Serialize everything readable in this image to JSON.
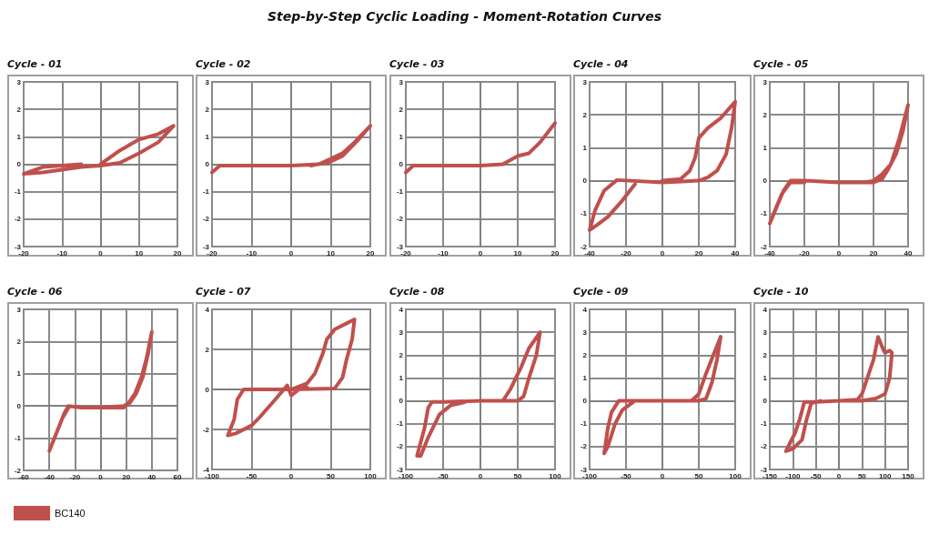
{
  "chart_data": [
    {
      "type": "line",
      "title": "Cycle - 01",
      "annotations": [
        "Step-by-Step Cyclic Loading - Moment-Rotation Curves"
      ],
      "marker": "none",
      "line_style": "solid",
      "grid": true,
      "xlim": [
        -20,
        20
      ],
      "xticks": [
        -20,
        -10,
        0,
        10,
        20
      ],
      "ylim": [
        -3,
        3
      ],
      "yticks": [
        -3,
        -2,
        -1,
        0,
        1,
        2,
        3
      ],
      "series": [
        {
          "color": "#c0504d",
          "x": [
            0,
            5,
            10,
            15,
            19,
            15,
            10,
            5,
            0,
            -5,
            -10,
            -15,
            -20,
            -15,
            -10,
            -5
          ],
          "values": [
            0,
            0.5,
            0.9,
            1.1,
            1.4,
            0.8,
            0.4,
            0.05,
            -0.05,
            -0.1,
            -0.2,
            -0.3,
            -0.35,
            -0.1,
            -0.05,
            0
          ]
        }
      ]
    },
    {
      "type": "line",
      "title": "Cycle - 02",
      "marker": "none",
      "line_style": "solid",
      "grid": true,
      "xlim": [
        -20,
        20
      ],
      "xticks": [
        -20,
        -10,
        0,
        10,
        20
      ],
      "ylim": [
        -3,
        3
      ],
      "yticks": [
        -3,
        -2,
        -1,
        0,
        1,
        2,
        3
      ],
      "series": [
        {
          "color": "#c0504d",
          "x": [
            -20,
            -18,
            -10,
            0,
            7,
            10,
            13,
            16,
            20,
            17,
            13,
            10,
            5
          ],
          "values": [
            -0.3,
            -0.05,
            -0.05,
            -0.05,
            0,
            0.2,
            0.4,
            0.8,
            1.4,
            0.9,
            0.3,
            0.1,
            -0.05
          ]
        }
      ]
    },
    {
      "type": "line",
      "title": "Cycle - 03",
      "marker": "none",
      "line_style": "solid",
      "grid": true,
      "xlim": [
        -20,
        20
      ],
      "xticks": [
        -20,
        -10,
        0,
        10,
        20
      ],
      "ylim": [
        -3,
        3
      ],
      "yticks": [
        -3,
        -2,
        -1,
        0,
        1,
        2,
        3
      ],
      "series": [
        {
          "color": "#c0504d",
          "x": [
            -20,
            -18,
            -10,
            0,
            6,
            10,
            13,
            16,
            20
          ],
          "values": [
            -0.3,
            -0.05,
            -0.05,
            -0.05,
            0,
            0.3,
            0.4,
            0.8,
            1.5
          ]
        }
      ]
    },
    {
      "type": "line",
      "title": "Cycle - 04",
      "marker": "none",
      "line_style": "solid",
      "grid": true,
      "xlim": [
        -40,
        40
      ],
      "xticks": [
        -40,
        -20,
        0,
        20,
        40
      ],
      "ylim": [
        -2,
        3
      ],
      "yticks": [
        -2,
        -1,
        0,
        1,
        2,
        3
      ],
      "series": [
        {
          "color": "#c0504d",
          "x": [
            0,
            10,
            15,
            18,
            20,
            25,
            32,
            40,
            38,
            35,
            30,
            25,
            20,
            0,
            -25,
            -32,
            -37,
            -40,
            -36,
            -30,
            -22,
            -15
          ],
          "values": [
            0,
            0.05,
            0.3,
            0.7,
            1.3,
            1.6,
            1.9,
            2.4,
            1.6,
            0.8,
            0.3,
            0.1,
            0,
            -0.05,
            0.02,
            -0.3,
            -0.9,
            -1.5,
            -1.35,
            -1.1,
            -0.6,
            -0.1
          ]
        }
      ]
    },
    {
      "type": "line",
      "title": "Cycle - 05",
      "marker": "none",
      "line_style": "solid",
      "grid": true,
      "xlim": [
        -40,
        40
      ],
      "xticks": [
        -40,
        -20,
        0,
        20,
        40
      ],
      "ylim": [
        -2,
        3
      ],
      "yticks": [
        -2,
        -1,
        0,
        1,
        2,
        3
      ],
      "series": [
        {
          "color": "#c0504d",
          "x": [
            0,
            15,
            20,
            25,
            30,
            35,
            40,
            37,
            33,
            28,
            25,
            20,
            0,
            -20,
            -28,
            -32,
            -36,
            -40,
            -37,
            -33,
            -28,
            -20
          ],
          "values": [
            -0.05,
            -0.05,
            0,
            0.2,
            0.5,
            1.3,
            2.3,
            1.5,
            0.8,
            0.3,
            0.05,
            -0.05,
            -0.05,
            0,
            0,
            -0.3,
            -0.8,
            -1.3,
            -0.9,
            -0.4,
            -0.05,
            -0.05
          ]
        }
      ]
    },
    {
      "type": "line",
      "title": "Cycle - 06",
      "legend": "bottom left",
      "marker": "none",
      "line_style": "solid",
      "grid": true,
      "xlim": [
        -60,
        60
      ],
      "xticks": [
        -60,
        -40,
        -20,
        0,
        20,
        40,
        60
      ],
      "ylim": [
        -2,
        3
      ],
      "yticks": [
        -2,
        -1,
        0,
        1,
        2,
        3
      ],
      "series": [
        {
          "name": "BC140",
          "color": "#c0504d",
          "x": [
            0,
            18,
            22,
            27,
            32,
            36,
            40,
            37,
            33,
            28,
            23,
            18,
            0,
            -15,
            -25,
            -28,
            -32,
            -36,
            -40,
            -35,
            -30,
            -25
          ],
          "values": [
            -0.05,
            -0.05,
            0.1,
            0.4,
            0.9,
            1.5,
            2.3,
            1.6,
            0.9,
            0.4,
            0.1,
            0,
            -0.05,
            -0.05,
            0,
            -0.2,
            -0.6,
            -1,
            -1.4,
            -0.9,
            -0.4,
            -0.05
          ]
        }
      ]
    },
    {
      "type": "line",
      "title": "Cycle - 07",
      "marker": "none",
      "line_style": "solid",
      "grid": true,
      "xlim": [
        -100,
        100
      ],
      "xticks": [
        -100,
        -50,
        0,
        50,
        100
      ],
      "ylim": [
        -4,
        4
      ],
      "yticks": [
        -4,
        -2,
        0,
        2,
        4
      ],
      "series": [
        {
          "color": "#c0504d",
          "x": [
            0,
            20,
            30,
            40,
            45,
            55,
            70,
            80,
            77,
            70,
            65,
            55,
            0,
            -60,
            -68,
            -72,
            -80,
            -70,
            -50,
            -40,
            -20,
            -5,
            0,
            10,
            20
          ],
          "values": [
            0,
            0.3,
            0.8,
            1.8,
            2.5,
            3,
            3.3,
            3.5,
            2.5,
            1.5,
            0.6,
            0.05,
            0,
            0,
            -0.5,
            -1.5,
            -2.3,
            -2.2,
            -1.8,
            -1.4,
            -0.5,
            0.2,
            -0.3,
            0,
            0.1
          ]
        }
      ]
    },
    {
      "type": "line",
      "title": "Cycle - 08",
      "marker": "none",
      "line_style": "solid",
      "grid": true,
      "xlim": [
        -100,
        100
      ],
      "xticks": [
        -100,
        -50,
        0,
        50,
        100
      ],
      "ylim": [
        -3,
        4
      ],
      "yticks": [
        -3,
        -2,
        -1,
        0,
        1,
        2,
        3,
        4
      ],
      "series": [
        {
          "color": "#c0504d",
          "x": [
            0,
            30,
            40,
            55,
            65,
            80,
            75,
            65,
            58,
            50,
            0,
            -50,
            -65,
            -70,
            -75,
            -85,
            -80,
            -70,
            -55,
            -40,
            -20
          ],
          "values": [
            0,
            0,
            0.5,
            1.5,
            2.3,
            3,
            2,
            1,
            0.2,
            0,
            0,
            -0.05,
            -0.05,
            -0.3,
            -1.2,
            -2.4,
            -2.4,
            -1.6,
            -0.6,
            -0.2,
            -0.05
          ]
        }
      ]
    },
    {
      "type": "line",
      "title": "Cycle - 09",
      "marker": "none",
      "line_style": "solid",
      "grid": true,
      "xlim": [
        -100,
        100
      ],
      "xticks": [
        -100,
        -50,
        0,
        50,
        100
      ],
      "ylim": [
        -3,
        4
      ],
      "yticks": [
        -3,
        -2,
        -1,
        0,
        1,
        2,
        3,
        4
      ],
      "series": [
        {
          "color": "#c0504d",
          "x": [
            0,
            40,
            50,
            60,
            70,
            80,
            75,
            68,
            60,
            50,
            0,
            -60,
            -70,
            -75,
            -80,
            -75,
            -65,
            -55,
            -40
          ],
          "values": [
            0,
            0,
            0.3,
            1.2,
            2,
            2.8,
            1.8,
            0.8,
            0.1,
            0,
            0,
            0,
            -0.5,
            -1.2,
            -2.3,
            -2,
            -1,
            -0.4,
            -0.05
          ]
        }
      ]
    },
    {
      "type": "line",
      "title": "Cycle - 10",
      "marker": "none",
      "line_style": "solid",
      "grid": true,
      "xlim": [
        -150,
        150
      ],
      "xticks": [
        -150,
        -100,
        -50,
        0,
        50,
        100,
        150
      ],
      "ylim": [
        -3,
        4
      ],
      "yticks": [
        -3,
        -2,
        -1,
        0,
        1,
        2,
        3,
        4
      ],
      "series": [
        {
          "color": "#c0504d",
          "x": [
            0,
            40,
            50,
            60,
            75,
            85,
            95,
            100,
            110,
            115,
            110,
            100,
            80,
            50,
            0,
            -50,
            -75,
            -85,
            -95,
            -115,
            -100,
            -80,
            -70,
            -60,
            -40
          ],
          "values": [
            0,
            0.05,
            0.3,
            0.9,
            1.8,
            2.8,
            2.3,
            2.1,
            2.2,
            2.1,
            1,
            0.3,
            0.1,
            0,
            0,
            -0.05,
            -0.05,
            -0.8,
            -1.4,
            -2.2,
            -2.1,
            -1.7,
            -0.8,
            -0.1,
            0
          ]
        }
      ]
    }
  ]
}
